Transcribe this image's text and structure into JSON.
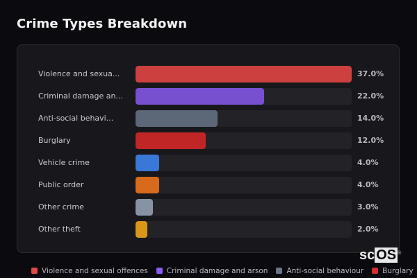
{
  "title": "Crime Types Breakdown",
  "chart_data": {
    "type": "bar",
    "orientation": "horizontal",
    "title": "Crime Types Breakdown",
    "categories": [
      "Violence and sexual offences",
      "Criminal damage and arson",
      "Anti-social behaviour",
      "Burglary",
      "Vehicle crime",
      "Public order",
      "Other crime",
      "Other theft"
    ],
    "display_labels": [
      "Violence and sexua...",
      "Criminal damage an...",
      "Anti-social behavi...",
      "Burglary",
      "Vehicle crime",
      "Public order",
      "Other crime",
      "Other theft"
    ],
    "values": [
      37.0,
      22.0,
      14.0,
      12.0,
      4.0,
      4.0,
      3.0,
      2.0
    ],
    "value_labels": [
      "37.0%",
      "22.0%",
      "14.0%",
      "12.0%",
      "4.0%",
      "4.0%",
      "3.0%",
      "2.0%"
    ],
    "colors": [
      "#cc4040",
      "#7750d0",
      "#5c6778",
      "#c02626",
      "#3a78d8",
      "#d86a1c",
      "#8792a5",
      "#d8961a"
    ],
    "xlim": [
      0,
      37
    ],
    "unit": "%",
    "grid": false,
    "legend_position": "bottom"
  },
  "rows": [
    {
      "label": "Violence and sexua...",
      "pct": "37.0%",
      "width": "100%",
      "color": "#cc4040"
    },
    {
      "label": "Criminal damage an...",
      "pct": "22.0%",
      "width": "59.5%",
      "color": "#7750d0"
    },
    {
      "label": "Anti-social behavi...",
      "pct": "14.0%",
      "width": "37.8%",
      "color": "#5c6778"
    },
    {
      "label": "Burglary",
      "pct": "12.0%",
      "width": "32.4%",
      "color": "#c02626"
    },
    {
      "label": "Vehicle crime",
      "pct": "4.0%",
      "width": "10.8%",
      "color": "#3a78d8"
    },
    {
      "label": "Public order",
      "pct": "4.0%",
      "width": "10.8%",
      "color": "#d86a1c"
    },
    {
      "label": "Other crime",
      "pct": "3.0%",
      "width": "8.1%",
      "color": "#8792a5"
    },
    {
      "label": "Other theft",
      "pct": "2.0%",
      "width": "5.4%",
      "color": "#d8961a"
    }
  ],
  "legend": [
    {
      "label": "Violence and sexual offences",
      "color": "#e04848"
    },
    {
      "label": "Criminal damage and arson",
      "color": "#8a5cf0"
    },
    {
      "label": "Anti-social behaviour",
      "color": "#6a7588"
    },
    {
      "label": "Burglary",
      "color": "#d62e2e"
    }
  ],
  "watermark": {
    "prefix": "sc",
    "boxed": "OS",
    "mark": "®"
  }
}
